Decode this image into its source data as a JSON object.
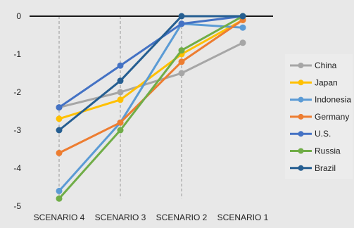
{
  "chart_data": {
    "type": "line",
    "title": "",
    "xlabel": "",
    "ylabel": "",
    "categories": [
      "SCENARIO 4",
      "SCENARIO 3",
      "SCENARIO 2",
      "SCENARIO 1"
    ],
    "yticks": [
      "0",
      "-1",
      "-2",
      "-3",
      "-4",
      "-5"
    ],
    "ylim": [
      -5,
      0
    ],
    "grid": false,
    "legend_position": "right",
    "series": [
      {
        "name": "China",
        "color": "#a6a6a6",
        "values": [
          -2.4,
          -2.0,
          -1.5,
          -0.7
        ]
      },
      {
        "name": "Japan",
        "color": "#ffc000",
        "values": [
          -2.7,
          -2.2,
          -1.0,
          -0.1
        ]
      },
      {
        "name": "Indonesia",
        "color": "#5b9bd5",
        "values": [
          -4.6,
          -2.8,
          -0.2,
          -0.3
        ]
      },
      {
        "name": "Germany",
        "color": "#ed7d31",
        "values": [
          -3.6,
          -2.8,
          -1.2,
          -0.1
        ]
      },
      {
        "name": "U.S.",
        "color": "#4472c4",
        "values": [
          -2.4,
          -1.3,
          -0.2,
          0.0
        ]
      },
      {
        "name": "Russia",
        "color": "#70ad47",
        "values": [
          -4.8,
          -3.0,
          -0.9,
          0.0
        ]
      },
      {
        "name": "Brazil",
        "color": "#255e91",
        "values": [
          -3.0,
          -1.7,
          0.0,
          0.0
        ]
      }
    ]
  }
}
